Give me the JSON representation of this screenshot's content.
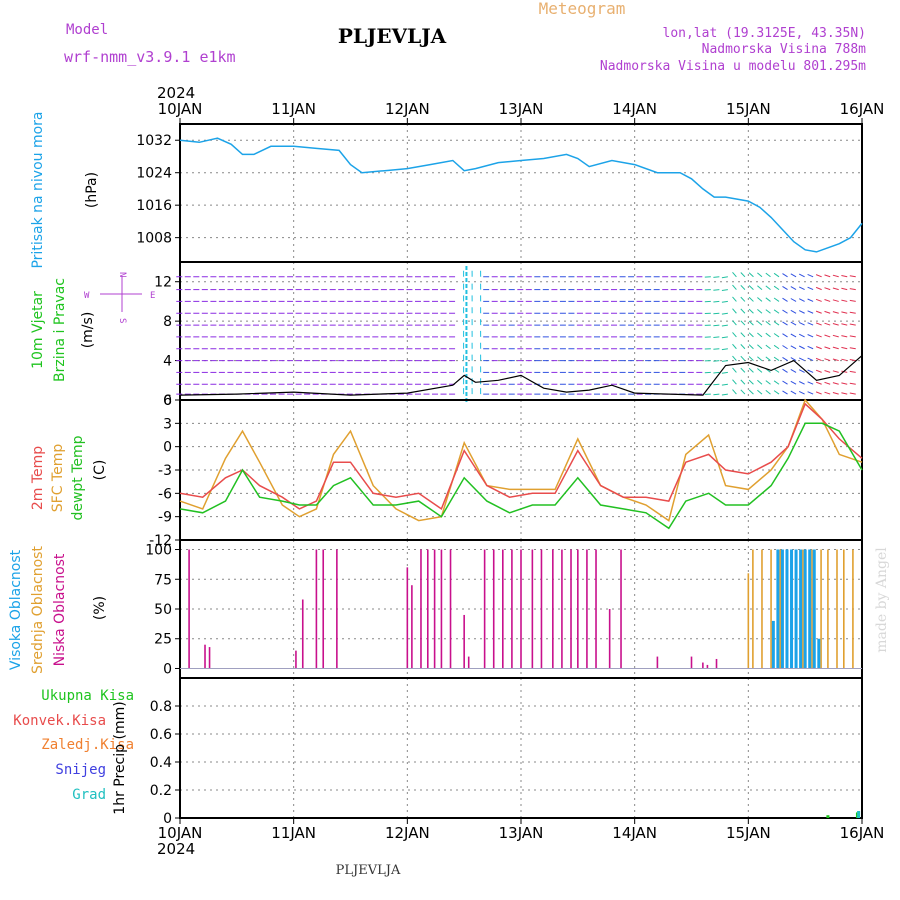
{
  "header": {
    "model_label": "Model",
    "model_name": "wrf-nmm_v3.9.1  e1km",
    "station": "PLJEVLJA",
    "meteogram": "Meteogram",
    "lonlat": "lon,lat (19.3125E, 43.35N)",
    "elevation": "Nadmorska Visina 788m",
    "model_elevation": "Nadmorska Visina u modelu 801.295m",
    "watermark": "made by Angel",
    "footer_station": "PLJEVLJA"
  },
  "time_axis": {
    "year": "2024",
    "labels": [
      "10JAN",
      "11JAN",
      "12JAN",
      "13JAN",
      "14JAN",
      "15JAN",
      "16JAN"
    ]
  },
  "colors": {
    "pressure": "#1ca3e8",
    "wind_label": "#1fc41f",
    "wind_speed": "#000000",
    "t2m": "#e84c4c",
    "tsfc": "#e0a030",
    "tdew": "#22c022",
    "cloud_high": "#1ca3e8",
    "cloud_mid": "#e0a030",
    "cloud_low": "#c8108c",
    "precip_total": "#1fc41f",
    "precip_conv": "#e84c4c",
    "precip_frozen": "#f08030",
    "precip_snow": "#4040e0",
    "precip_hail": "#20c0c0",
    "compass": "#b040d0"
  },
  "chart_data": [
    {
      "type": "line",
      "title": "",
      "ylabel": [
        "Pritisak na nivou mora",
        "(hPa)"
      ],
      "yticks": [
        "1032",
        "1024",
        "1016",
        "1008"
      ],
      "ylim": [
        1002,
        1036
      ],
      "xlim_days": [
        0,
        6
      ],
      "series": [
        {
          "name": "Pritisak na nivou mora",
          "x": [
            0,
            0.17,
            0.33,
            0.45,
            0.55,
            0.65,
            0.8,
            1.0,
            1.2,
            1.4,
            1.5,
            1.6,
            1.8,
            2.0,
            2.2,
            2.4,
            2.5,
            2.6,
            2.8,
            3.0,
            3.2,
            3.4,
            3.5,
            3.6,
            3.8,
            4.0,
            4.2,
            4.4,
            4.5,
            4.6,
            4.7,
            4.8,
            5.0,
            5.1,
            5.2,
            5.3,
            5.4,
            5.5,
            5.6,
            5.7,
            5.8,
            5.9,
            6.0
          ],
          "values": [
            1032,
            1031.5,
            1032.5,
            1031,
            1028.5,
            1028.5,
            1030.5,
            1030.5,
            1030,
            1029.5,
            1026,
            1024,
            1024.5,
            1025,
            1026,
            1027,
            1024.5,
            1025,
            1026.5,
            1027,
            1027.5,
            1028.5,
            1027.5,
            1025.5,
            1027,
            1026,
            1024,
            1024,
            1022.5,
            1020,
            1018,
            1018,
            1017,
            1015.5,
            1013,
            1010,
            1007,
            1005,
            1004.5,
            1005.5,
            1006.5,
            1008,
            1011.5
          ]
        }
      ]
    },
    {
      "type": "line",
      "ylabel": [
        "10m Vjetar",
        "Brzina i Pravac",
        "(m/s)"
      ],
      "yticks": [
        "12",
        "8",
        "4",
        "0"
      ],
      "ylim": [
        0,
        14
      ],
      "compass": {
        "n": "N",
        "s": "S",
        "e": "E",
        "w": "W"
      },
      "series": [
        {
          "name": "wind_speed",
          "x": [
            0,
            0.5,
            1,
            1.5,
            2,
            2.4,
            2.5,
            2.6,
            2.8,
            3,
            3.2,
            3.4,
            3.6,
            3.8,
            4,
            4.3,
            4.6,
            4.8,
            5,
            5.2,
            5.4,
            5.6,
            5.8,
            6
          ],
          "values": [
            0.5,
            0.6,
            0.8,
            0.5,
            0.7,
            1.5,
            2.5,
            1.8,
            2.0,
            2.5,
            1.2,
            0.8,
            1.0,
            1.5,
            0.7,
            0.6,
            0.5,
            3.5,
            3.8,
            3.0,
            4.0,
            2.0,
            2.5,
            4.5
          ]
        }
      ]
    },
    {
      "type": "line",
      "ylabel": [
        "2m Temp",
        "SFC Temp",
        "dewpt Temp",
        "(C)"
      ],
      "yticks": [
        "6",
        "3",
        "0",
        "-3",
        "-6",
        "-9",
        "-12"
      ],
      "ylim": [
        -12,
        6
      ],
      "series": [
        {
          "name": "2m Temp",
          "x": [
            0,
            0.2,
            0.4,
            0.55,
            0.7,
            0.9,
            1.05,
            1.2,
            1.35,
            1.5,
            1.7,
            1.9,
            2.1,
            2.3,
            2.5,
            2.7,
            2.9,
            3.1,
            3.3,
            3.5,
            3.7,
            3.9,
            4.1,
            4.3,
            4.45,
            4.65,
            4.8,
            5.0,
            5.2,
            5.35,
            5.5,
            5.65,
            5.8,
            6.0
          ],
          "values": [
            -6,
            -6.5,
            -4,
            -3,
            -5,
            -6.5,
            -8,
            -7,
            -2,
            -2,
            -6,
            -6.5,
            -6,
            -8,
            -0.5,
            -5,
            -6.5,
            -6,
            -6,
            -0.5,
            -5,
            -6.5,
            -6.5,
            -7,
            -2,
            -1,
            -3,
            -3.5,
            -2,
            0,
            5.5,
            3.5,
            1,
            -1.5
          ]
        },
        {
          "name": "SFC Temp",
          "x": [
            0,
            0.2,
            0.4,
            0.55,
            0.7,
            0.9,
            1.05,
            1.2,
            1.35,
            1.5,
            1.7,
            1.9,
            2.1,
            2.3,
            2.5,
            2.7,
            2.9,
            3.1,
            3.3,
            3.5,
            3.7,
            3.9,
            4.1,
            4.3,
            4.45,
            4.65,
            4.8,
            5.0,
            5.2,
            5.35,
            5.5,
            5.65,
            5.8,
            6.0
          ],
          "values": [
            -7,
            -8,
            -1.5,
            2,
            -2,
            -7.5,
            -9,
            -8,
            -1,
            2,
            -5,
            -8,
            -9.5,
            -9,
            0.5,
            -5,
            -5.5,
            -5.5,
            -5.5,
            1,
            -5,
            -6.5,
            -7.5,
            -9.5,
            -1,
            1.5,
            -5,
            -5.5,
            -3,
            0,
            6,
            3.5,
            -1,
            -2
          ]
        },
        {
          "name": "dewpt Temp",
          "x": [
            0,
            0.2,
            0.4,
            0.55,
            0.7,
            0.9,
            1.05,
            1.2,
            1.35,
            1.5,
            1.7,
            1.9,
            2.1,
            2.3,
            2.5,
            2.7,
            2.9,
            3.1,
            3.3,
            3.5,
            3.7,
            3.9,
            4.1,
            4.3,
            4.45,
            4.65,
            4.8,
            5.0,
            5.2,
            5.35,
            5.5,
            5.65,
            5.8,
            6.0
          ],
          "values": [
            -8,
            -8.5,
            -7,
            -3,
            -6.5,
            -7,
            -7.5,
            -7.5,
            -5,
            -4,
            -7.5,
            -7.5,
            -7,
            -9,
            -4,
            -7,
            -8.5,
            -7.5,
            -7.5,
            -4,
            -7.5,
            -8,
            -8.5,
            -10.5,
            -7,
            -6,
            -7.5,
            -7.5,
            -5,
            -1.5,
            3,
            3,
            2,
            -3
          ]
        }
      ]
    },
    {
      "type": "bar",
      "ylabel": [
        "Visoka Oblacnost",
        "Srednja Oblacnost",
        "Niska Oblacnost",
        "(%)"
      ],
      "yticks": [
        "100",
        "75",
        "50",
        "25",
        "0"
      ],
      "ylim": [
        0,
        100
      ],
      "series": [
        {
          "name": "Niska Oblacnost",
          "x": [
            0.08,
            0.22,
            0.26,
            1.02,
            1.08,
            1.2,
            1.26,
            1.38,
            2.0,
            2.04,
            2.12,
            2.18,
            2.24,
            2.3,
            2.38,
            2.5,
            2.54,
            2.68,
            2.76,
            2.84,
            2.92,
            3.0,
            3.1,
            3.18,
            3.28,
            3.36,
            3.44,
            3.5,
            3.58,
            3.66,
            3.78,
            3.88,
            4.2,
            4.5,
            4.6,
            4.64,
            4.72
          ],
          "values": [
            100,
            20,
            18,
            15,
            58,
            100,
            100,
            100,
            85,
            70,
            100,
            100,
            100,
            100,
            100,
            45,
            10,
            100,
            100,
            100,
            100,
            100,
            100,
            100,
            100,
            100,
            100,
            100,
            100,
            100,
            50,
            100,
            10,
            10,
            5,
            3,
            8
          ]
        },
        {
          "name": "Srednja Oblacnost",
          "x": [
            5.0,
            5.04,
            5.12,
            5.2,
            5.28,
            5.34,
            5.42,
            5.48,
            5.56,
            5.64,
            5.7,
            5.78,
            5.84,
            5.92
          ],
          "values": [
            80,
            100,
            100,
            100,
            100,
            100,
            100,
            100,
            100,
            100,
            100,
            100,
            100,
            100
          ]
        },
        {
          "name": "Visoka Oblacnost",
          "x": [
            5.22,
            5.26,
            5.3,
            5.34,
            5.38,
            5.42,
            5.46,
            5.5,
            5.54,
            5.58,
            5.62
          ],
          "values": [
            40,
            100,
            100,
            100,
            100,
            100,
            100,
            100,
            100,
            100,
            25
          ]
        }
      ]
    },
    {
      "type": "bar",
      "ylabel": [
        "Ukupna Kisa",
        "Konvek.Kisa",
        "Zaledj.Kisa",
        "Snijeg",
        "Grad",
        "1hr Precip (mm)"
      ],
      "yticks": [
        "0.8",
        "0.6",
        "0.4",
        "0.2",
        "0"
      ],
      "ylim": [
        0,
        1.0
      ],
      "series": [
        {
          "name": "Ukupna Kisa",
          "x": [
            5.7,
            5.96
          ],
          "values": [
            0.02,
            0.04
          ]
        },
        {
          "name": "Grad",
          "x": [
            5.97
          ],
          "values": [
            0.05
          ]
        }
      ]
    }
  ]
}
